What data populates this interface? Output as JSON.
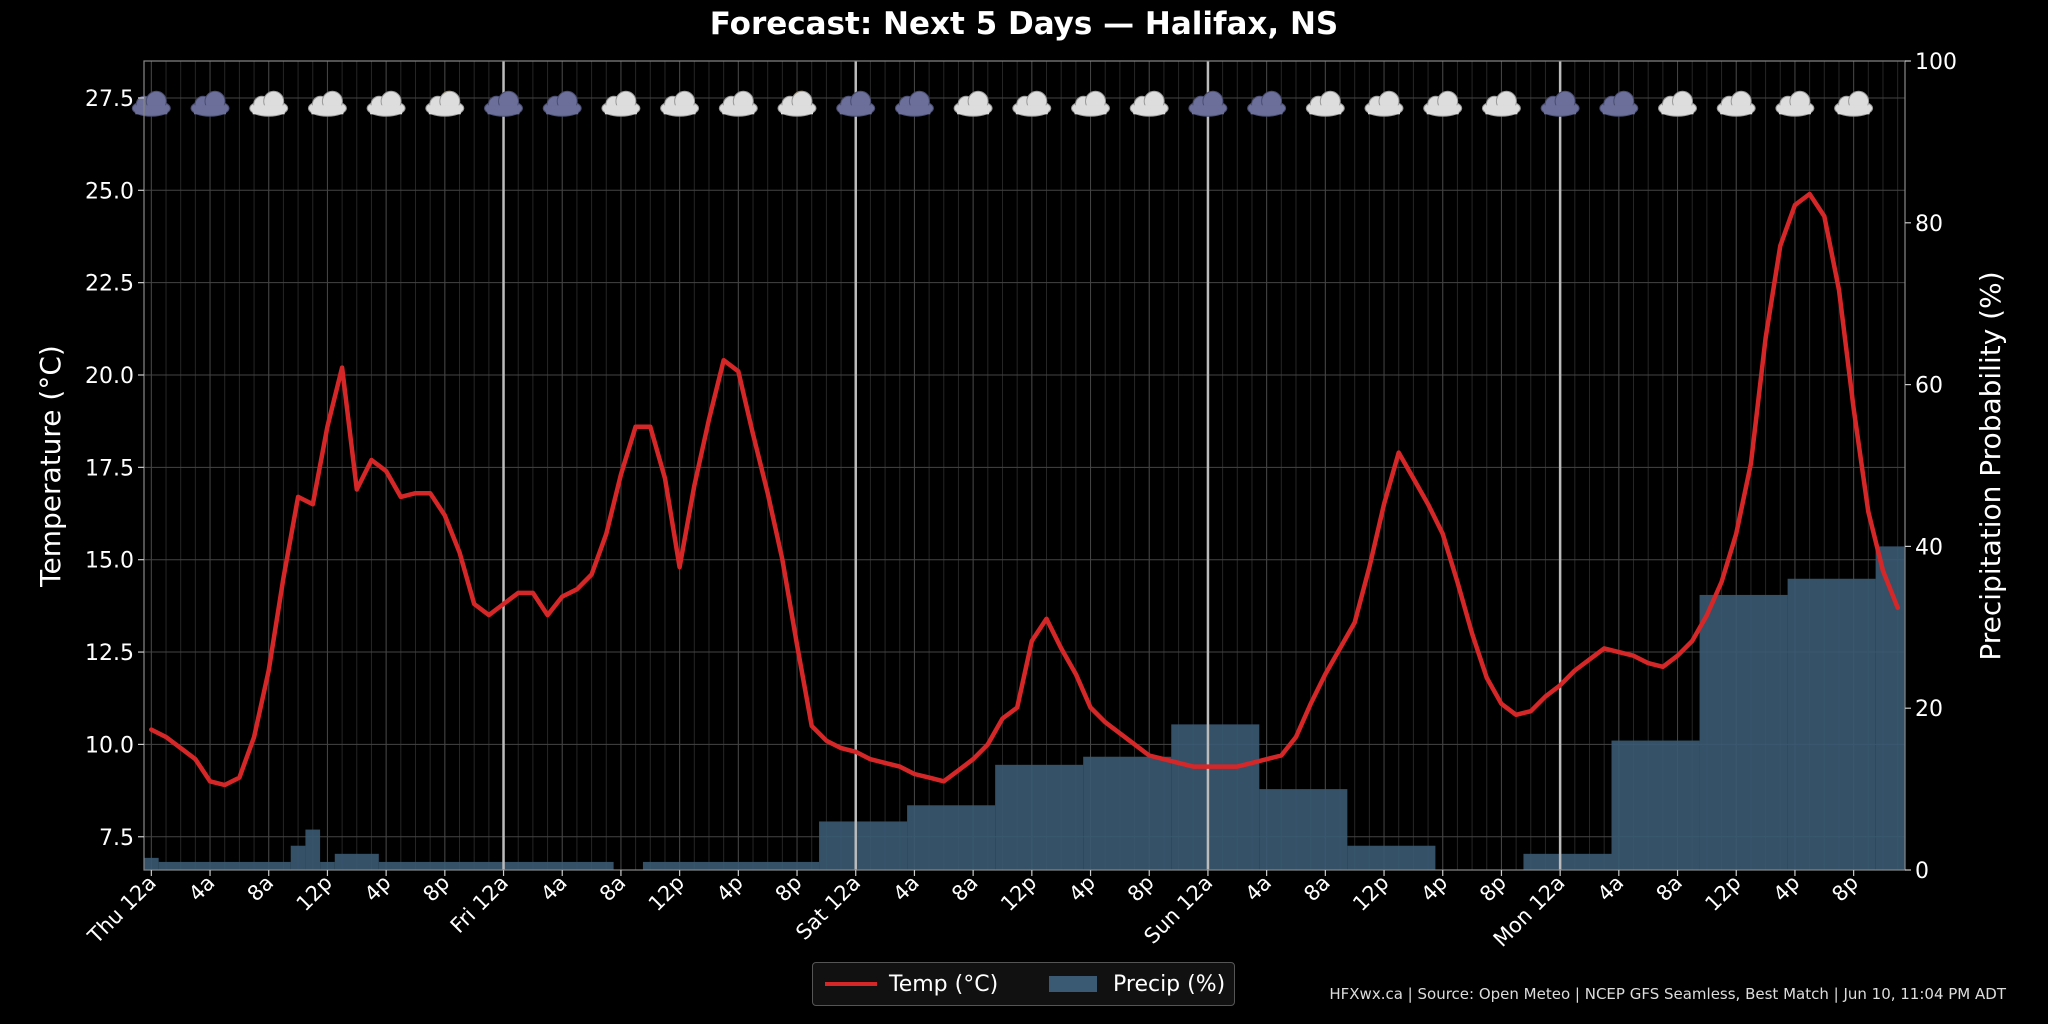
{
  "chart_data": {
    "type": "line+bar",
    "title": "Forecast: Next 5 Days — Halifax, NS",
    "ylabel": "Temperature (°C)",
    "y2label": "Precipitation Probability (%)",
    "ylim": [
      6.6,
      28.5
    ],
    "y2lim": [
      0,
      100
    ],
    "yticks": [
      "7.5",
      "10.0",
      "12.5",
      "15.0",
      "17.5",
      "20.0",
      "22.5",
      "25.0",
      "27.5"
    ],
    "y2ticks": [
      "0",
      "20",
      "40",
      "60",
      "80",
      "100"
    ],
    "x_unit": "hours since Thu 12a",
    "xlim": [
      -0.5,
      119.5
    ],
    "xticks": [
      {
        "x": 0,
        "label": "Thu 12a"
      },
      {
        "x": 4,
        "label": "4a"
      },
      {
        "x": 8,
        "label": "8a"
      },
      {
        "x": 12,
        "label": "12p"
      },
      {
        "x": 16,
        "label": "4p"
      },
      {
        "x": 20,
        "label": "8p"
      },
      {
        "x": 24,
        "label": "Fri 12a"
      },
      {
        "x": 28,
        "label": "4a"
      },
      {
        "x": 32,
        "label": "8a"
      },
      {
        "x": 36,
        "label": "12p"
      },
      {
        "x": 40,
        "label": "4p"
      },
      {
        "x": 44,
        "label": "8p"
      },
      {
        "x": 48,
        "label": "Sat 12a"
      },
      {
        "x": 52,
        "label": "4a"
      },
      {
        "x": 56,
        "label": "8a"
      },
      {
        "x": 60,
        "label": "12p"
      },
      {
        "x": 64,
        "label": "4p"
      },
      {
        "x": 68,
        "label": "8p"
      },
      {
        "x": 72,
        "label": "Sun 12a"
      },
      {
        "x": 76,
        "label": "4a"
      },
      {
        "x": 80,
        "label": "8a"
      },
      {
        "x": 84,
        "label": "12p"
      },
      {
        "x": 88,
        "label": "4p"
      },
      {
        "x": 92,
        "label": "8p"
      },
      {
        "x": 96,
        "label": "Mon 12a"
      },
      {
        "x": 100,
        "label": "4a"
      },
      {
        "x": 104,
        "label": "8a"
      },
      {
        "x": 108,
        "label": "12p"
      },
      {
        "x": 112,
        "label": "4p"
      },
      {
        "x": 116,
        "label": "8p"
      }
    ],
    "day_lines": [
      24,
      48,
      72,
      96
    ],
    "series": [
      {
        "name": "Temp (°C)",
        "color": "#d62728",
        "kind": "line",
        "x": [
          0,
          1,
          2,
          3,
          4,
          5,
          6,
          7,
          8,
          9,
          10,
          11,
          12,
          13,
          14,
          15,
          16,
          17,
          18,
          19,
          20,
          21,
          22,
          23,
          24,
          25,
          26,
          27,
          28,
          29,
          30,
          31,
          32,
          33,
          34,
          35,
          36,
          37,
          38,
          39,
          40,
          41,
          42,
          43,
          44,
          45,
          46,
          47,
          48,
          49,
          50,
          51,
          52,
          53,
          54,
          55,
          56,
          57,
          58,
          59,
          60,
          61,
          62,
          63,
          64,
          65,
          66,
          67,
          68,
          69,
          70,
          71,
          72,
          73,
          74,
          75,
          76,
          77,
          78,
          79,
          80,
          81,
          82,
          83,
          84,
          85,
          86,
          87,
          88,
          89,
          90,
          91,
          92,
          93,
          94,
          95,
          96,
          97,
          98,
          99,
          100,
          101,
          102,
          103,
          104,
          105,
          106,
          107,
          108,
          109,
          110,
          111,
          112,
          113,
          114,
          115,
          116,
          117,
          118,
          119
        ],
        "values": [
          10.4,
          10.2,
          9.9,
          9.6,
          9.0,
          8.9,
          9.1,
          10.2,
          12.0,
          14.5,
          16.7,
          16.5,
          18.6,
          20.2,
          16.9,
          17.7,
          17.4,
          16.7,
          16.8,
          16.8,
          16.2,
          15.2,
          13.8,
          13.5,
          13.8,
          14.1,
          14.1,
          13.5,
          14.0,
          14.2,
          14.6,
          15.7,
          17.3,
          18.6,
          18.6,
          17.2,
          14.8,
          17.0,
          18.8,
          20.4,
          20.1,
          18.4,
          16.8,
          15.0,
          12.7,
          10.5,
          10.1,
          9.9,
          9.8,
          9.6,
          9.5,
          9.4,
          9.2,
          9.1,
          9.0,
          9.3,
          9.6,
          10.0,
          10.7,
          11.0,
          12.8,
          13.4,
          12.6,
          11.9,
          11.0,
          10.6,
          10.3,
          10.0,
          9.7,
          9.6,
          9.5,
          9.4,
          9.4,
          9.4,
          9.4,
          9.5,
          9.6,
          9.7,
          10.2,
          11.1,
          11.9,
          12.6,
          13.3,
          14.8,
          16.5,
          17.9,
          17.2,
          16.5,
          15.7,
          14.4,
          13.0,
          11.8,
          11.1,
          10.8,
          10.9,
          11.3,
          11.6,
          12.0,
          12.3,
          12.6,
          12.5,
          12.4,
          12.2,
          12.1,
          12.4,
          12.8,
          13.5,
          14.4,
          15.7,
          17.6,
          21.0,
          23.5,
          24.6,
          24.9,
          24.3,
          22.3,
          19.1,
          16.3,
          14.7,
          13.7
        ]
      },
      {
        "name": "Precip (%)",
        "color": "#3a5a73",
        "kind": "bar",
        "segments": [
          {
            "start": 0,
            "end": 0,
            "value": 1.5
          },
          {
            "start": 1,
            "end": 9,
            "value": 1
          },
          {
            "start": 10,
            "end": 10,
            "value": 3
          },
          {
            "start": 11,
            "end": 11,
            "value": 5
          },
          {
            "start": 12,
            "end": 12,
            "value": 1
          },
          {
            "start": 13,
            "end": 15,
            "value": 2
          },
          {
            "start": 16,
            "end": 31,
            "value": 1
          },
          {
            "start": 34,
            "end": 45,
            "value": 1
          },
          {
            "start": 46,
            "end": 51,
            "value": 6
          },
          {
            "start": 52,
            "end": 57,
            "value": 8
          },
          {
            "start": 58,
            "end": 63,
            "value": 13
          },
          {
            "start": 64,
            "end": 69,
            "value": 14
          },
          {
            "start": 70,
            "end": 75,
            "value": 18
          },
          {
            "start": 76,
            "end": 81,
            "value": 10
          },
          {
            "start": 82,
            "end": 87,
            "value": 3
          },
          {
            "start": 94,
            "end": 99,
            "value": 2
          },
          {
            "start": 100,
            "end": 105,
            "value": 16
          },
          {
            "start": 106,
            "end": 111,
            "value": 34
          },
          {
            "start": 112,
            "end": 117,
            "value": 36
          },
          {
            "start": 118,
            "end": 119,
            "value": 40
          }
        ]
      }
    ],
    "weather_icons": {
      "every_hours": 4,
      "start_hour": 0,
      "y_value": 27.3,
      "kinds": [
        "rain",
        "rain",
        "cloud",
        "cloud",
        "cloud",
        "partly-sunny",
        "rain",
        "rain",
        "cloud",
        "cloud",
        "cloud",
        "partly-sunny",
        "rain",
        "rain",
        "cloud",
        "cloud",
        "cloud",
        "cloud",
        "rain",
        "rain",
        "cloud",
        "cloud",
        "cloud",
        "cloud",
        "rain",
        "rain",
        "cloud",
        "cloud",
        "cloud",
        "cloud"
      ]
    },
    "grid": true,
    "legend": "bottom-center",
    "colors": {
      "background": "#000000",
      "grid": "#444444",
      "day_line": "#bbbbbb",
      "axis": "#888888",
      "text": "#ffffff",
      "rain_cloud": "#6b6f9a",
      "cloud": "#dddddd",
      "sun": "#f2c230"
    }
  },
  "legend": {
    "temp_label": "Temp (°C)",
    "precip_label": "Precip (%)"
  },
  "footer": {
    "text": "HFXwx.ca | Source: Open Meteo | NCEP GFS Seamless, Best Match | Jun 10, 11:04 PM ADT"
  }
}
